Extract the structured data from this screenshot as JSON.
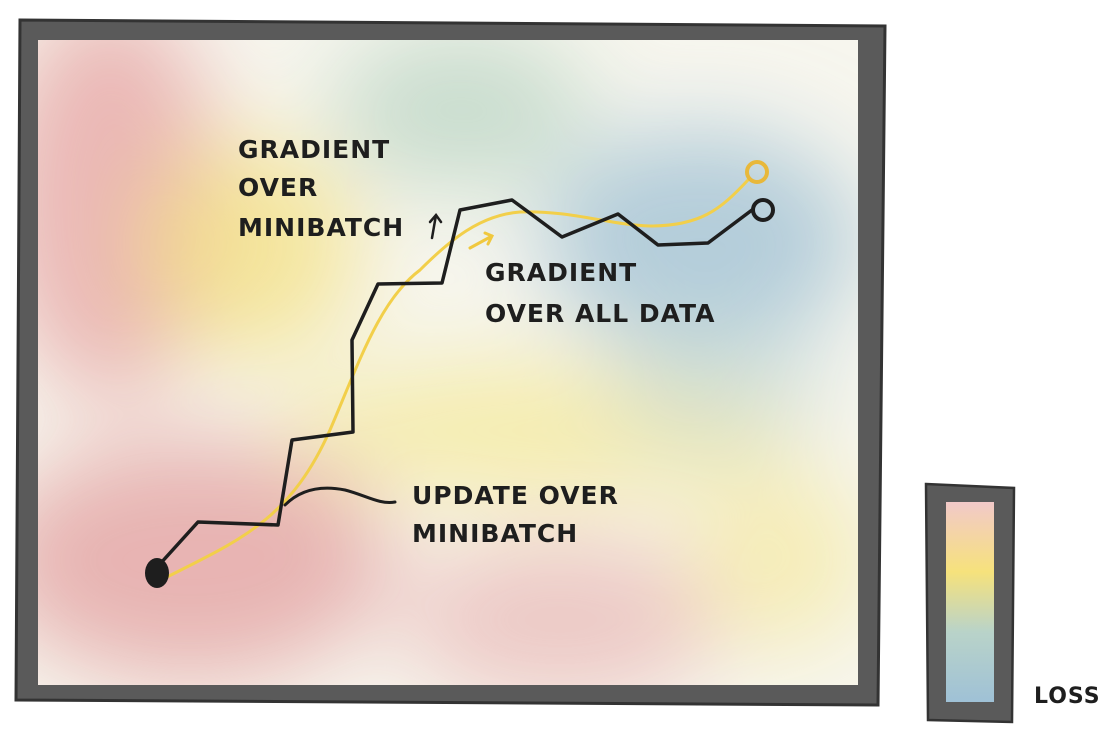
{
  "labels": {
    "gradient_minibatch": [
      "GRADIENT",
      "OVER",
      "MINIBATCH"
    ],
    "gradient_all_data": [
      "GRADIENT",
      "OVER ALL DATA"
    ],
    "update_minibatch": [
      "UPDATE OVER",
      "MINIBATCH"
    ],
    "legend": "LOSS"
  },
  "colors": {
    "frame": "#555555",
    "ink": "#1e1e1e",
    "full_gradient_path": "#f2cf4a",
    "loss_high": "#e3a5a5",
    "loss_mid": "#f3df72",
    "loss_low": "#a8c6d6"
  }
}
